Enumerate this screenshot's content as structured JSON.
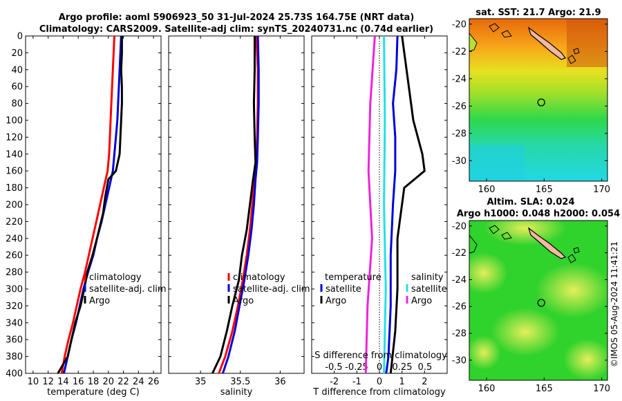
{
  "title": {
    "line1": "Argo profile: aoml 5906923_50 31-Jul-2024 25.73S 164.75E (NRT data)",
    "line2": "Climatology: CARS2009. Satellite-adj clim: synTS_20240731.nc (0.74d earlier)"
  },
  "colors": {
    "climatology": "#ff0000",
    "satellite": "#0000dd",
    "argo": "#000000",
    "s_satellite": "#22e0e8",
    "s_argo": "#ee22dd"
  },
  "chart_data": [
    {
      "type": "line",
      "name": "temperature-profile",
      "xlabel": "temperature (deg C)",
      "xlim": [
        9,
        27
      ],
      "ylim": [
        400,
        0
      ],
      "xticks": [
        "10",
        "12",
        "14",
        "16",
        "18",
        "20",
        "22",
        "24",
        "26"
      ],
      "xtick_values": [
        10,
        12,
        14,
        16,
        18,
        20,
        22,
        24,
        26
      ],
      "yticks": [
        "0",
        "20",
        "40",
        "60",
        "80",
        "100",
        "120",
        "140",
        "160",
        "180",
        "200",
        "220",
        "240",
        "260",
        "280",
        "300",
        "320",
        "340",
        "360",
        "380",
        "400"
      ],
      "ytick_values": [
        0,
        20,
        40,
        60,
        80,
        100,
        120,
        140,
        160,
        180,
        200,
        220,
        240,
        260,
        280,
        300,
        320,
        340,
        360,
        380,
        400
      ],
      "legend": [
        "climatology",
        "satellite-adj. clim",
        "Argo"
      ],
      "series": [
        {
          "name": "climatology",
          "points": [
            [
              20.8,
              0
            ],
            [
              20.7,
              20
            ],
            [
              20.6,
              40
            ],
            [
              20.5,
              60
            ],
            [
              20.4,
              80
            ],
            [
              20.3,
              100
            ],
            [
              20.2,
              120
            ],
            [
              20.1,
              140
            ],
            [
              19.9,
              160
            ],
            [
              19.4,
              180
            ],
            [
              18.9,
              200
            ],
            [
              18.4,
              220
            ],
            [
              17.9,
              240
            ],
            [
              17.4,
              260
            ],
            [
              16.9,
              280
            ],
            [
              16.3,
              300
            ],
            [
              15.8,
              320
            ],
            [
              15.3,
              340
            ],
            [
              14.7,
              360
            ],
            [
              14.2,
              380
            ],
            [
              13.8,
              400
            ]
          ]
        },
        {
          "name": "satellite",
          "points": [
            [
              21.7,
              0
            ],
            [
              21.6,
              20
            ],
            [
              21.5,
              40
            ],
            [
              21.4,
              60
            ],
            [
              21.3,
              80
            ],
            [
              21.2,
              100
            ],
            [
              21.0,
              120
            ],
            [
              20.8,
              140
            ],
            [
              20.6,
              160
            ],
            [
              20.1,
              180
            ],
            [
              19.6,
              200
            ],
            [
              19.1,
              220
            ],
            [
              18.5,
              240
            ],
            [
              18.0,
              260
            ],
            [
              17.3,
              280
            ],
            [
              16.7,
              300
            ],
            [
              16.2,
              320
            ],
            [
              15.7,
              340
            ],
            [
              15.1,
              360
            ],
            [
              14.6,
              380
            ],
            [
              14.1,
              400
            ]
          ]
        },
        {
          "name": "argo",
          "points": [
            [
              21.8,
              0
            ],
            [
              21.8,
              20
            ],
            [
              21.7,
              40
            ],
            [
              21.8,
              60
            ],
            [
              21.8,
              80
            ],
            [
              21.7,
              100
            ],
            [
              21.6,
              120
            ],
            [
              21.5,
              140
            ],
            [
              21.0,
              160
            ],
            [
              20.0,
              170
            ],
            [
              19.6,
              190
            ],
            [
              19.3,
              210
            ],
            [
              18.5,
              240
            ],
            [
              17.9,
              260
            ],
            [
              17.2,
              280
            ],
            [
              16.8,
              300
            ],
            [
              16.3,
              320
            ],
            [
              15.6,
              340
            ],
            [
              15.1,
              360
            ],
            [
              14.6,
              380
            ],
            [
              13.3,
              400
            ]
          ]
        }
      ]
    },
    {
      "type": "line",
      "name": "salinity-profile",
      "xlabel": "salinity",
      "xlim": [
        34.6,
        36.3
      ],
      "ylim": [
        400,
        0
      ],
      "xticks": [
        "35",
        "35.5",
        "36"
      ],
      "xtick_values": [
        35,
        35.5,
        36
      ],
      "legend": [
        "climatology",
        "satellite-adj. clim",
        "Argo"
      ],
      "series": [
        {
          "name": "climatology",
          "points": [
            [
              35.7,
              0
            ],
            [
              35.72,
              40
            ],
            [
              35.72,
              80
            ],
            [
              35.71,
              120
            ],
            [
              35.7,
              150
            ],
            [
              35.68,
              170
            ],
            [
              35.65,
              200
            ],
            [
              35.62,
              230
            ],
            [
              35.58,
              260
            ],
            [
              35.53,
              290
            ],
            [
              35.47,
              320
            ],
            [
              35.4,
              350
            ],
            [
              35.31,
              380
            ],
            [
              35.23,
              400
            ]
          ]
        },
        {
          "name": "satellite",
          "points": [
            [
              35.72,
              0
            ],
            [
              35.73,
              40
            ],
            [
              35.73,
              80
            ],
            [
              35.72,
              120
            ],
            [
              35.71,
              150
            ],
            [
              35.69,
              170
            ],
            [
              35.67,
              200
            ],
            [
              35.64,
              230
            ],
            [
              35.6,
              260
            ],
            [
              35.55,
              290
            ],
            [
              35.49,
              320
            ],
            [
              35.43,
              350
            ],
            [
              35.35,
              380
            ],
            [
              35.28,
              400
            ]
          ]
        },
        {
          "name": "argo",
          "points": [
            [
              35.68,
              0
            ],
            [
              35.68,
              40
            ],
            [
              35.67,
              80
            ],
            [
              35.68,
              120
            ],
            [
              35.69,
              150
            ],
            [
              35.66,
              170
            ],
            [
              35.62,
              200
            ],
            [
              35.58,
              230
            ],
            [
              35.52,
              260
            ],
            [
              35.48,
              290
            ],
            [
              35.4,
              320
            ],
            [
              35.33,
              350
            ],
            [
              35.25,
              380
            ],
            [
              35.15,
              400
            ]
          ]
        }
      ]
    },
    {
      "type": "line",
      "name": "difference-profile",
      "xlabel": "T difference from climatology",
      "xlabel2": "S difference from climatology",
      "xlim": [
        -3,
        3
      ],
      "ylim": [
        400,
        0
      ],
      "xticks": [
        "-2",
        "-1",
        "0",
        "1",
        "2"
      ],
      "xtick_values": [
        -2,
        -1,
        0,
        1,
        2
      ],
      "xticks2": [
        "-0.5",
        "-0.25",
        "0",
        "0.25",
        "0.5"
      ],
      "legend_left_title": "temperature",
      "legend_left": [
        "satellite",
        "Argo"
      ],
      "legend_right_title": "salinity",
      "legend_right": [
        "satellite",
        "Argo"
      ],
      "series": [
        {
          "name": "T satellite",
          "points": [
            [
              0.8,
              0
            ],
            [
              0.75,
              40
            ],
            [
              0.6,
              80
            ],
            [
              0.7,
              120
            ],
            [
              0.7,
              160
            ],
            [
              0.6,
              200
            ],
            [
              0.5,
              260
            ],
            [
              0.5,
              320
            ],
            [
              0.4,
              380
            ],
            [
              0.3,
              400
            ]
          ]
        },
        {
          "name": "T argo",
          "points": [
            [
              1.0,
              0
            ],
            [
              1.3,
              60
            ],
            [
              1.5,
              100
            ],
            [
              1.9,
              140
            ],
            [
              2.0,
              160
            ],
            [
              1.1,
              180
            ],
            [
              0.8,
              240
            ],
            [
              0.8,
              300
            ],
            [
              0.7,
              350
            ],
            [
              0.5,
              400
            ]
          ]
        },
        {
          "name": "S satellite",
          "points": [
            [
              0.05,
              0
            ],
            [
              0.06,
              100
            ],
            [
              0.05,
              200
            ],
            [
              0.07,
              300
            ],
            [
              0.05,
              400
            ]
          ]
        },
        {
          "name": "S argo",
          "points": [
            [
              -0.05,
              0
            ],
            [
              -0.1,
              80
            ],
            [
              -0.12,
              160
            ],
            [
              -0.08,
              240
            ],
            [
              -0.13,
              320
            ],
            [
              -0.15,
              400
            ]
          ]
        }
      ]
    }
  ],
  "maps": [
    {
      "title": "sat. SST: 21.7 Argo: 21.9",
      "yticks": [
        "-20",
        "-22",
        "-24",
        "-26",
        "-28",
        "-30"
      ],
      "ytick_values": [
        -20,
        -22,
        -24,
        -26,
        -28,
        -30
      ],
      "xticks": [
        "160",
        "165",
        "170"
      ],
      "xtick_values": [
        160,
        165,
        170
      ],
      "xlim": [
        158.5,
        170.5
      ],
      "ylim": [
        -31.5,
        -19.6
      ],
      "marker_lon": 164.75,
      "marker_lat": -25.73
    },
    {
      "title_line1": "Altim. SLA: 0.024",
      "title_line2": "Argo h1000: 0.048 h2000: 0.054",
      "yticks": [
        "-20",
        "-22",
        "-24",
        "-26",
        "-28",
        "-30"
      ],
      "ytick_values": [
        -20,
        -22,
        -24,
        -26,
        -28,
        -30
      ],
      "xticks": [
        "160",
        "165",
        "170"
      ],
      "xtick_values": [
        160,
        165,
        170
      ],
      "xlim": [
        158.5,
        170.5
      ],
      "ylim": [
        -31.5,
        -19.6
      ],
      "marker_lon": 164.75,
      "marker_lat": -25.73
    }
  ],
  "watermark": "©IMOS 05-Aug-2024 11:41:21"
}
